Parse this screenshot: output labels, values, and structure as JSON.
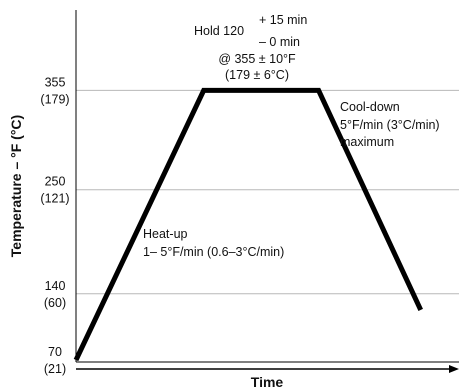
{
  "chart_data": {
    "type": "line",
    "xlabel": "Time",
    "ylabel": "Temperature – °F (°C)",
    "ylim": [
      70,
      440
    ],
    "grid": true,
    "y_ticks": [
      {
        "value": 70,
        "label_f": "70",
        "label_c": "(21)"
      },
      {
        "value": 140,
        "label_f": "140",
        "label_c": "(60)"
      },
      {
        "value": 250,
        "label_f": "250",
        "label_c": "(121)"
      },
      {
        "value": 355,
        "label_f": "355",
        "label_c": "(179)"
      }
    ],
    "series": [
      {
        "points": [
          {
            "x": 0,
            "y": 70
          },
          {
            "x": 1,
            "y": 355
          },
          {
            "x": 1.9,
            "y": 355
          },
          {
            "x": 2.7,
            "y": 123
          }
        ]
      }
    ],
    "xlim": [
      0,
      3.0
    ],
    "annotations": {
      "hold_prefix": "Hold 120",
      "hold_plus": "+ 15 min",
      "hold_minus": "– 0 min",
      "hold_temp_f": "@ 355 ± 10°F",
      "hold_temp_c": "(179 ± 6°C)",
      "cooldown_line1": "Cool-down",
      "cooldown_line2": "5°F/min (3°C/min)",
      "cooldown_line3": "maximum",
      "heatup_line1": "Heat-up",
      "heatup_line2": "1– 5°F/min (0.6–3°C/min)"
    }
  }
}
